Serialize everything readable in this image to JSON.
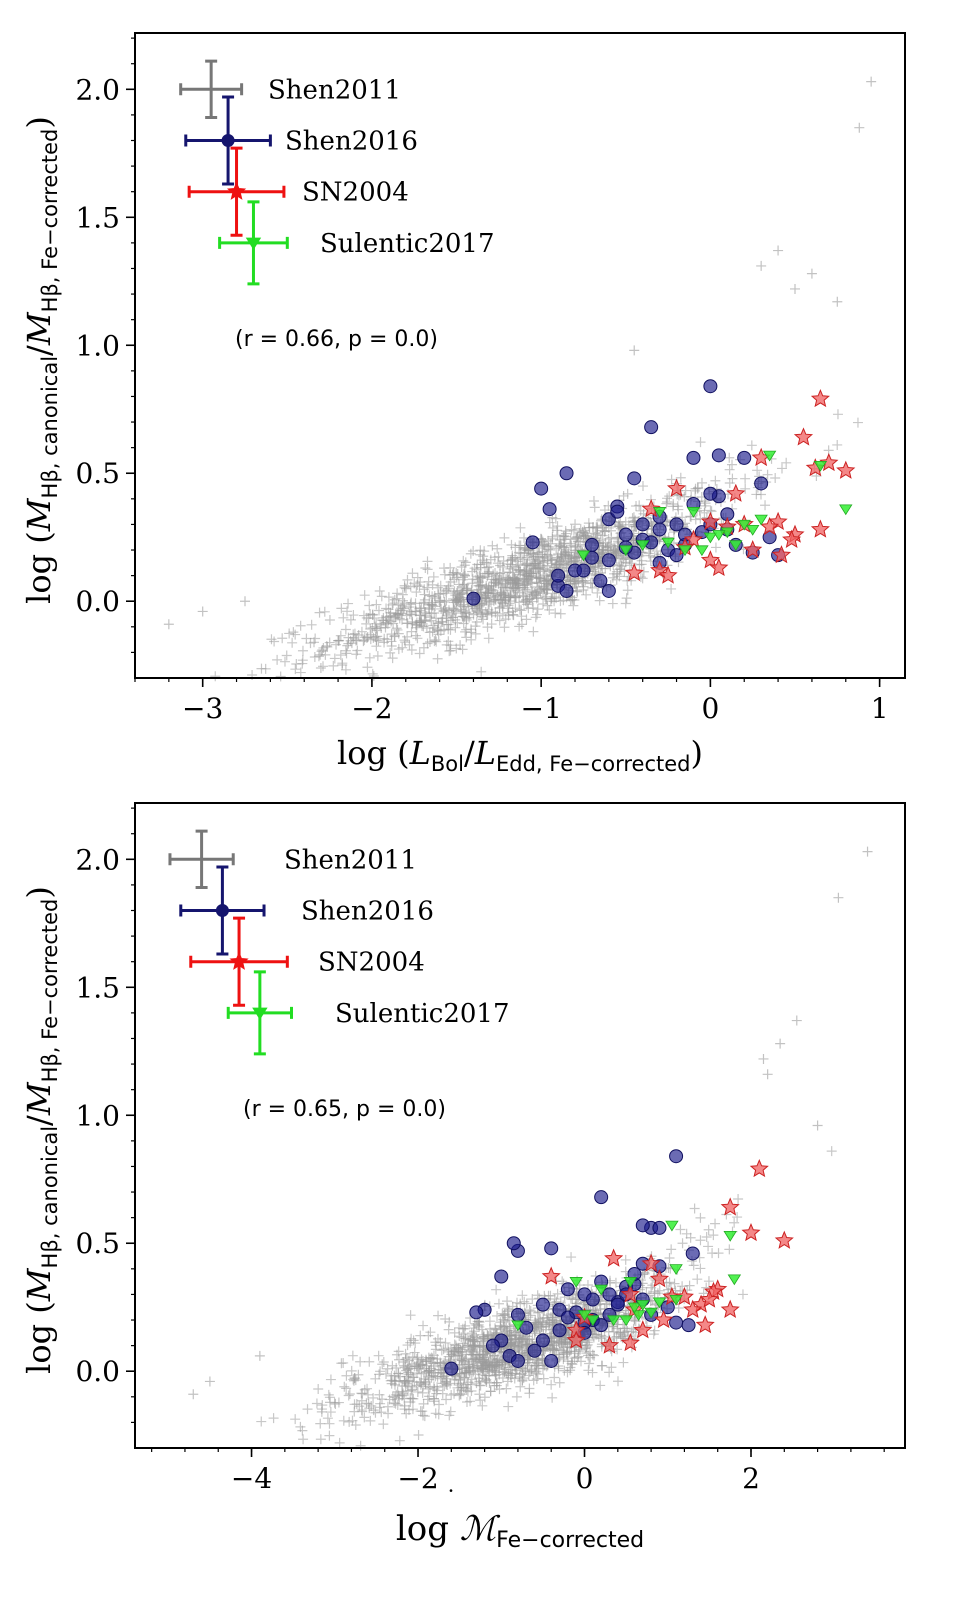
{
  "chart_data": [
    {
      "type": "scatter",
      "xlabel_prefix": "log (",
      "xlabel_sym1": "L",
      "xlabel_sub1": "Bol",
      "xlabel_slash": "/",
      "xlabel_sym2": "L",
      "xlabel_sub2": "Edd, Fe−corrected",
      "xlabel_suffix": ")",
      "ylabel_prefix": "log (",
      "ylabel_sym1": "M",
      "ylabel_sub1": "Hβ, canonical",
      "ylabel_slash": "/",
      "ylabel_sym2": "M",
      "ylabel_sub2": "Hβ, Fe−corrected",
      "ylabel_suffix": ")",
      "xlim": [
        -3.4,
        1.15
      ],
      "ylim": [
        -0.3,
        2.22
      ],
      "xticks": [
        -3,
        -2,
        -1,
        0,
        1
      ],
      "yticks": [
        0.0,
        0.5,
        1.0,
        1.5,
        2.0
      ],
      "xtick_labels": [
        "−3",
        "−2",
        "−1",
        "0",
        "1"
      ],
      "ytick_labels": [
        "0.0",
        "0.5",
        "1.0",
        "1.5",
        "2.0"
      ],
      "annotation": "(r = 0.66,  p = 0.0)",
      "legend": [
        {
          "name": "Shen2011",
          "color": "#777777",
          "marker": "plus",
          "x": -2.95,
          "y": 2.0,
          "xerr": 0.18,
          "yerr": 0.11
        },
        {
          "name": "Shen2016",
          "color": "#15156e",
          "marker": "circle",
          "x": -2.85,
          "y": 1.8,
          "xerr": 0.25,
          "yerr": 0.17
        },
        {
          "name": "SN2004",
          "color": "#ee1111",
          "marker": "star",
          "x": -2.8,
          "y": 1.6,
          "xerr": 0.28,
          "yerr": 0.17
        },
        {
          "name": "Sulentic2017",
          "color": "#22dd22",
          "marker": "triangle",
          "x": -2.7,
          "y": 1.4,
          "xerr": 0.2,
          "yerr": 0.16
        }
      ],
      "series": [
        {
          "name": "Shen2016",
          "color": "#1c1c8c",
          "marker": "circle",
          "x": [
            0.0,
            -0.35,
            -1.0,
            -0.85,
            -0.45,
            -0.55,
            0.2,
            -0.1,
            0.05,
            -0.3,
            0.3,
            -0.6,
            -0.95,
            -0.2,
            0.1,
            -0.7,
            -0.4,
            -0.5,
            -0.05,
            0.4,
            -0.8,
            -1.4,
            -0.9,
            -0.25,
            -0.15,
            0.0,
            -0.6,
            -0.45,
            -0.75,
            -0.35,
            0.05,
            -0.1,
            -0.55,
            -0.3,
            0.15,
            -1.05,
            -0.65,
            -0.2,
            -0.85,
            -0.5,
            0.35,
            -0.4,
            -0.9,
            0.1,
            -0.3,
            0.25,
            -0.15,
            -0.6,
            0.0,
            -0.7
          ],
          "y": [
            0.84,
            0.68,
            0.44,
            0.5,
            0.48,
            0.37,
            0.56,
            0.56,
            0.57,
            0.33,
            0.46,
            0.32,
            0.36,
            0.3,
            0.34,
            0.22,
            0.24,
            0.26,
            0.27,
            0.18,
            0.12,
            0.01,
            0.06,
            0.2,
            0.22,
            0.3,
            0.16,
            0.19,
            0.12,
            0.23,
            0.41,
            0.38,
            0.35,
            0.28,
            0.22,
            0.23,
            0.08,
            0.18,
            0.04,
            0.21,
            0.25,
            0.3,
            0.1,
            0.28,
            0.15,
            0.19,
            0.26,
            0.04,
            0.42,
            0.17
          ]
        },
        {
          "name": "SN2004",
          "color": "#f06060",
          "marker": "star",
          "x": [
            0.65,
            0.55,
            0.7,
            0.8,
            0.62,
            0.3,
            0.4,
            0.5,
            0.65,
            0.48,
            0.35,
            0.42,
            0.15,
            0.1,
            -0.2,
            -0.35,
            -0.1,
            -0.45,
            -0.3,
            0.0,
            -0.15,
            0.2,
            -0.25,
            0.05,
            0.25,
            0.0
          ],
          "y": [
            0.79,
            0.64,
            0.54,
            0.51,
            0.52,
            0.56,
            0.31,
            0.26,
            0.28,
            0.24,
            0.29,
            0.18,
            0.42,
            0.29,
            0.44,
            0.36,
            0.24,
            0.11,
            0.12,
            0.16,
            0.21,
            0.3,
            0.1,
            0.13,
            0.2,
            0.31
          ]
        },
        {
          "name": "Sulentic2017",
          "color": "#33ee33",
          "marker": "triangle",
          "x": [
            0.35,
            0.65,
            0.8,
            0.2,
            0.1,
            -0.05,
            0.15,
            0.0,
            -0.15,
            -0.3,
            0.25,
            -0.75,
            -0.5,
            -0.1,
            0.05,
            0.3,
            -0.4,
            -0.25
          ],
          "y": [
            0.57,
            0.53,
            0.36,
            0.3,
            0.27,
            0.2,
            0.22,
            0.25,
            0.2,
            0.35,
            0.28,
            0.18,
            0.2,
            0.35,
            0.26,
            0.32,
            0.22,
            0.23
          ]
        }
      ]
    },
    {
      "type": "scatter",
      "xlabel_prefix": "log ",
      "xlabel_sym1": "ℳ",
      "xlabel_sub1": "Fe−corrected",
      "ylabel_prefix": "log (",
      "ylabel_sym1": "M",
      "ylabel_sub1": "Hβ, canonical",
      "ylabel_slash": "/",
      "ylabel_sym2": "M",
      "ylabel_sub2": "Hβ, Fe−corrected",
      "ylabel_suffix": ")",
      "xlim": [
        -5.4,
        3.85
      ],
      "ylim": [
        -0.3,
        2.22
      ],
      "xticks": [
        -4,
        -2,
        0,
        2
      ],
      "yticks": [
        0.0,
        0.5,
        1.0,
        1.5,
        2.0
      ],
      "xtick_labels": [
        "−4",
        "−2",
        "0",
        "2"
      ],
      "ytick_labels": [
        "0.0",
        "0.5",
        "1.0",
        "1.5",
        "2.0"
      ],
      "annotation": "(r = 0.65,  p = 0.0)",
      "legend": [
        {
          "name": "Shen2011",
          "color": "#777777",
          "marker": "plus",
          "x": -4.6,
          "y": 2.0,
          "xerr": 0.38,
          "yerr": 0.11
        },
        {
          "name": "Shen2016",
          "color": "#15156e",
          "marker": "circle",
          "x": -4.35,
          "y": 1.8,
          "xerr": 0.5,
          "yerr": 0.17
        },
        {
          "name": "SN2004",
          "color": "#ee1111",
          "marker": "star",
          "x": -4.15,
          "y": 1.6,
          "xerr": 0.58,
          "yerr": 0.17
        },
        {
          "name": "Sulentic2017",
          "color": "#22dd22",
          "marker": "triangle",
          "x": -3.9,
          "y": 1.4,
          "xerr": 0.38,
          "yerr": 0.16
        }
      ],
      "series": [
        {
          "name": "Shen2016",
          "color": "#1c1c8c",
          "marker": "circle",
          "x": [
            1.1,
            0.2,
            -0.8,
            -0.85,
            -0.4,
            -1.0,
            0.8,
            0.9,
            0.7,
            0.5,
            1.3,
            -0.2,
            -1.2,
            0.0,
            0.6,
            -0.8,
            -0.3,
            -0.5,
            0.4,
            1.25,
            -1.0,
            -1.6,
            -0.9,
            0.1,
            0.3,
            0.5,
            -0.3,
            0.0,
            -0.5,
            -0.1,
            0.9,
            0.6,
            0.2,
            0.1,
            0.8,
            -1.3,
            -0.6,
            0.2,
            -0.8,
            -0.2,
            1.0,
            0.3,
            -1.1,
            0.7,
            0.0,
            1.1,
            0.4,
            -0.4,
            0.7,
            -0.7
          ],
          "y": [
            0.84,
            0.68,
            0.47,
            0.5,
            0.48,
            0.37,
            0.56,
            0.56,
            0.57,
            0.33,
            0.46,
            0.32,
            0.24,
            0.3,
            0.34,
            0.22,
            0.24,
            0.26,
            0.27,
            0.18,
            0.12,
            0.01,
            0.06,
            0.2,
            0.22,
            0.3,
            0.16,
            0.19,
            0.12,
            0.23,
            0.41,
            0.38,
            0.35,
            0.28,
            0.22,
            0.23,
            0.08,
            0.18,
            0.04,
            0.21,
            0.25,
            0.3,
            0.1,
            0.28,
            0.15,
            0.19,
            0.26,
            0.04,
            0.42,
            0.17
          ]
        },
        {
          "name": "SN2004",
          "color": "#f06060",
          "marker": "star",
          "x": [
            2.1,
            1.75,
            2.0,
            2.4,
            1.6,
            0.35,
            1.55,
            1.4,
            1.5,
            1.3,
            1.05,
            1.75,
            0.8,
            1.2,
            -0.4,
            0.9,
            0.6,
            0.55,
            0.3,
            -0.1,
            0.0,
            0.55,
            0.7,
            1.45,
            -0.1,
            0.95
          ],
          "y": [
            0.79,
            0.64,
            0.54,
            0.51,
            0.32,
            0.44,
            0.31,
            0.26,
            0.28,
            0.24,
            0.29,
            0.24,
            0.42,
            0.29,
            0.37,
            0.36,
            0.24,
            0.11,
            0.1,
            0.16,
            0.21,
            0.3,
            0.16,
            0.18,
            0.12,
            0.2
          ]
        },
        {
          "name": "Sulentic2017",
          "color": "#33ee33",
          "marker": "triangle",
          "x": [
            1.05,
            1.75,
            1.8,
            1.1,
            0.9,
            0.5,
            0.65,
            0.6,
            0.35,
            -0.1,
            1.1,
            -0.8,
            0.1,
            0.55,
            0.7,
            0.2,
            0.0,
            0.8
          ],
          "y": [
            0.57,
            0.53,
            0.36,
            0.4,
            0.27,
            0.2,
            0.22,
            0.25,
            0.2,
            0.35,
            0.28,
            0.18,
            0.2,
            0.35,
            0.26,
            0.32,
            0.22,
            0.23
          ]
        }
      ]
    }
  ]
}
